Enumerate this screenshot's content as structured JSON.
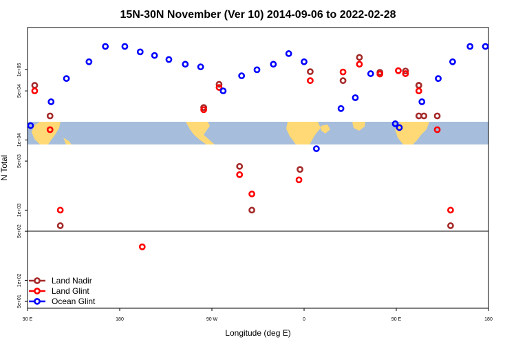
{
  "chart_data": {
    "type": "scatter",
    "title": "15N-30N November (Ver 10)   2014-09-06 to 2022-02-28",
    "xlabel": "Longitude (deg E)",
    "ylabel": "N Total",
    "x_ticks": [
      {
        "lon": 90,
        "label": "90 E"
      },
      {
        "lon": 180,
        "label": "180"
      },
      {
        "lon": 270,
        "label": "90 W"
      },
      {
        "lon": 360,
        "label": "0"
      },
      {
        "lon": 450,
        "label": "90 E"
      },
      {
        "lon": 540,
        "label": "180"
      }
    ],
    "xlim": [
      90,
      540
    ],
    "y_scale": "log",
    "y_ticks": [
      {
        "value": 50,
        "label": "5e+01"
      },
      {
        "value": 100,
        "label": "1e+02"
      },
      {
        "value": 500,
        "label": "5e+02"
      },
      {
        "value": 1000,
        "label": "1e+03"
      },
      {
        "value": 5000,
        "label": "5e+03"
      },
      {
        "value": 10000,
        "label": "1e+04"
      },
      {
        "value": 50000,
        "label": "5e+04"
      },
      {
        "value": 100000,
        "label": "1e+05"
      }
    ],
    "ylim": [
      40,
      400000
    ],
    "legend_position": "bottom-left",
    "series": [
      {
        "name": "Land Nadir",
        "color": "#a52a2a",
        "points": [
          {
            "x": 97,
            "y": 60000
          },
          {
            "x": 112,
            "y": 22000
          },
          {
            "x": 122,
            "y": 600
          },
          {
            "x": 262,
            "y": 29000
          },
          {
            "x": 277,
            "y": 62000
          },
          {
            "x": 297,
            "y": 4200
          },
          {
            "x": 309,
            "y": 1000
          },
          {
            "x": 356,
            "y": 3800
          },
          {
            "x": 366,
            "y": 94000
          },
          {
            "x": 398,
            "y": 70000
          },
          {
            "x": 414,
            "y": 150000
          },
          {
            "x": 434,
            "y": 92000
          },
          {
            "x": 459,
            "y": 96000
          },
          {
            "x": 472,
            "y": 60000
          },
          {
            "x": 472,
            "y": 60000
          },
          {
            "x": 472,
            "y": 22000
          },
          {
            "x": 477,
            "y": 22000
          },
          {
            "x": 490,
            "y": 22000
          },
          {
            "x": 503,
            "y": 600
          }
        ]
      },
      {
        "name": "Land Glint",
        "color": "#ff0000",
        "points": [
          {
            "x": 97,
            "y": 50000
          },
          {
            "x": 112,
            "y": 14000
          },
          {
            "x": 122,
            "y": 1000
          },
          {
            "x": 202,
            "y": 300
          },
          {
            "x": 262,
            "y": 27000
          },
          {
            "x": 277,
            "y": 56000
          },
          {
            "x": 297,
            "y": 3200
          },
          {
            "x": 309,
            "y": 1700
          },
          {
            "x": 355,
            "y": 2700
          },
          {
            "x": 366,
            "y": 70000
          },
          {
            "x": 398,
            "y": 93000
          },
          {
            "x": 414,
            "y": 120000
          },
          {
            "x": 434,
            "y": 87000
          },
          {
            "x": 452,
            "y": 97000
          },
          {
            "x": 459,
            "y": 88000
          },
          {
            "x": 472,
            "y": 50000
          },
          {
            "x": 490,
            "y": 14000
          },
          {
            "x": 503,
            "y": 1000
          }
        ]
      },
      {
        "name": "Ocean Glint",
        "color": "#0000ff",
        "points": [
          {
            "x": 93,
            "y": 16000
          },
          {
            "x": 113,
            "y": 35000
          },
          {
            "x": 128,
            "y": 75000
          },
          {
            "x": 150,
            "y": 130000
          },
          {
            "x": 166,
            "y": 215000
          },
          {
            "x": 185,
            "y": 215000
          },
          {
            "x": 200,
            "y": 180000
          },
          {
            "x": 214,
            "y": 160000
          },
          {
            "x": 228,
            "y": 140000
          },
          {
            "x": 244,
            "y": 120000
          },
          {
            "x": 259,
            "y": 110000
          },
          {
            "x": 281,
            "y": 50000
          },
          {
            "x": 299,
            "y": 82000
          },
          {
            "x": 314,
            "y": 100000
          },
          {
            "x": 330,
            "y": 120000
          },
          {
            "x": 345,
            "y": 170000
          },
          {
            "x": 360,
            "y": 130000
          },
          {
            "x": 372,
            "y": 7500
          },
          {
            "x": 396,
            "y": 28000
          },
          {
            "x": 410,
            "y": 40000
          },
          {
            "x": 425,
            "y": 88000
          },
          {
            "x": 449,
            "y": 17000
          },
          {
            "x": 453,
            "y": 15000
          },
          {
            "x": 475,
            "y": 35000
          },
          {
            "x": 491,
            "y": 75000
          },
          {
            "x": 505,
            "y": 130000
          },
          {
            "x": 522,
            "y": 215000
          },
          {
            "x": 537,
            "y": 215000
          }
        ]
      }
    ],
    "map_colors": {
      "ocean": "#a6bddb",
      "land": "#fed976"
    }
  }
}
